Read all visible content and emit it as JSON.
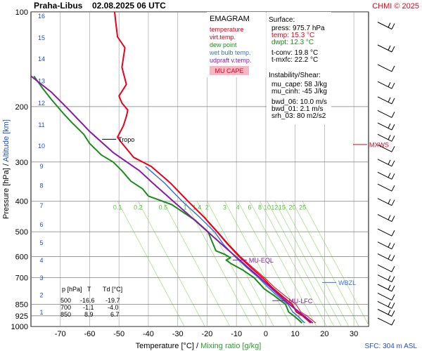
{
  "header": {
    "station": "Praha-Libus",
    "datetime": "02.08.2025 06 UTC",
    "credit": "CHMI © 2025"
  },
  "legend": {
    "title": "EMAGRAM",
    "items": [
      {
        "label": "temperature",
        "color": "#e8001c"
      },
      {
        "label": "virt.temp.",
        "color": "#e8001c"
      },
      {
        "label": "dew point",
        "color": "#1a8c1a"
      },
      {
        "label": "wet bulb temp.",
        "color": "#3d73d6"
      },
      {
        "label": "udpraft v.temp.",
        "color": "#8a1aa8"
      }
    ],
    "cape_label": "MU CAPE"
  },
  "info": {
    "surface_title": "Surface:",
    "surface_lines": [
      {
        "text": "press: 975.7 hPa",
        "color": "#000000"
      },
      {
        "text": "temp: 15.3 °C",
        "color": "#e8001c"
      },
      {
        "text": "dwpt: 12.3 °C",
        "color": "#1a8c1a"
      }
    ],
    "conv_lines": [
      "t-conv: 19.8 °C",
      "t-mxfc: 22.2 °C"
    ],
    "instab_title": "Instability/Shear:",
    "instab_lines": [
      "mu_cape: 58 J/kg",
      "mu_cinh: -45 J/kg"
    ],
    "shear_lines": [
      "bwd_06: 10.0 m/s",
      "bwd_01: 2.1 m/s",
      "srh_03: 80 m2/s2"
    ]
  },
  "table": {
    "headers": [
      "p [hPa]",
      "T",
      "Td [°C]"
    ],
    "rows": [
      [
        "500",
        "-16.6",
        "-19.7"
      ],
      [
        "700",
        "-1.1",
        "-4.0"
      ],
      [
        "850",
        "8.9",
        "6.7"
      ]
    ]
  },
  "footer": {
    "sfc": "SFC: 304 m ASL"
  },
  "colors": {
    "temperature": "#e8001c",
    "dewpoint": "#1a8c1a",
    "wetbulb": "#3d73d6",
    "parcel": "#8a1aa8",
    "mixing": "#9be07a",
    "grid": "#b4b4b4"
  },
  "chart_data": {
    "type": "line",
    "xlabel": "Temperature [°C]",
    "xlabel_sep": "/",
    "xlabel2": "Mixing ratio [g/kg]",
    "ylabel": "Pressure [hPa]",
    "ylabel_sep": "/",
    "ylabel2": "Altitude [km]",
    "xlim": [
      -80,
      35
    ],
    "ylim": [
      1000,
      100
    ],
    "y_scale": "log",
    "x_ticks": [
      -70,
      -60,
      -50,
      -40,
      -30,
      -20,
      -10,
      0,
      10,
      20,
      30
    ],
    "pressure_levels": [
      100,
      200,
      300,
      400,
      500,
      600,
      700,
      850,
      925,
      1000
    ],
    "altitude_labels": [
      {
        "km": "1",
        "p": 902
      },
      {
        "km": "2",
        "p": 795
      },
      {
        "km": "3",
        "p": 702
      },
      {
        "km": "4",
        "p": 617
      },
      {
        "km": "5",
        "p": 542
      },
      {
        "km": "6",
        "p": 475
      },
      {
        "km": "7",
        "p": 413
      },
      {
        "km": "8",
        "p": 357
      },
      {
        "km": "9",
        "p": 310
      },
      {
        "km": "10",
        "p": 267
      },
      {
        "km": "11",
        "p": 229
      },
      {
        "km": "12",
        "p": 195
      },
      {
        "km": "13",
        "p": 166
      },
      {
        "km": "14",
        "p": 141
      },
      {
        "km": "15",
        "p": 121
      },
      {
        "km": "16",
        "p": 103
      }
    ],
    "mixing_ratio_labels": [
      "0.1",
      "0.2",
      "0.5",
      "1",
      "1.4",
      "2",
      "3",
      "4",
      "6",
      "8",
      "10",
      "12",
      "15",
      "20",
      "25"
    ],
    "mixing_ratio_positions": [
      -50.5,
      -43.5,
      -35,
      -27.5,
      -23.5,
      -20,
      -14,
      -9.5,
      -5.5,
      -2,
      0.5,
      3,
      5.5,
      9,
      12.5
    ],
    "series": [
      {
        "key": "temperature",
        "color": "#e8001c",
        "width": 2,
        "points": [
          [
            15.3,
            975
          ],
          [
            14,
            950
          ],
          [
            12.5,
            925
          ],
          [
            10.5,
            900
          ],
          [
            8.9,
            850
          ],
          [
            5.5,
            800
          ],
          [
            2,
            750
          ],
          [
            -1.1,
            700
          ],
          [
            -5,
            650
          ],
          [
            -9,
            600
          ],
          [
            -12.8,
            550
          ],
          [
            -16.6,
            500
          ],
          [
            -21,
            450
          ],
          [
            -26.5,
            400
          ],
          [
            -32.5,
            350
          ],
          [
            -39,
            310
          ],
          [
            -45,
            290
          ],
          [
            -49.5,
            258
          ],
          [
            -50.5,
            250
          ],
          [
            -48.5,
            230
          ],
          [
            -47.5,
            215
          ],
          [
            -47,
            205
          ],
          [
            -49,
            195
          ],
          [
            -50,
            185
          ],
          [
            -47.5,
            170
          ],
          [
            -49,
            150
          ],
          [
            -48,
            130
          ],
          [
            -50.5,
            120
          ],
          [
            -51,
            110
          ],
          [
            -51.5,
            100
          ]
        ]
      },
      {
        "key": "virtual-temperature",
        "color": "#e8001c",
        "width": 1,
        "points": [
          [
            17,
            975
          ],
          [
            15.5,
            950
          ],
          [
            14,
            925
          ],
          [
            12,
            900
          ],
          [
            10.2,
            850
          ],
          [
            6.6,
            800
          ],
          [
            2.9,
            750
          ],
          [
            -0.4,
            700
          ],
          [
            -4.4,
            650
          ],
          [
            -8.6,
            600
          ],
          [
            -12.5,
            550
          ],
          [
            -16.4,
            500
          ],
          [
            -20.8,
            450
          ],
          [
            -26.4,
            400
          ],
          [
            -32.4,
            350
          ],
          [
            -39,
            310
          ]
        ]
      },
      {
        "key": "dewpoint",
        "color": "#1a8c1a",
        "width": 2,
        "points": [
          [
            12.3,
            975
          ],
          [
            11,
            950
          ],
          [
            9.5,
            925
          ],
          [
            7.8,
            900
          ],
          [
            6.7,
            850
          ],
          [
            3,
            800
          ],
          [
            -0.5,
            760
          ],
          [
            -4,
            700
          ],
          [
            -8,
            660
          ],
          [
            -12,
            630
          ],
          [
            -13.5,
            615
          ],
          [
            -12,
            605
          ],
          [
            -14,
            590
          ],
          [
            -17,
            575
          ],
          [
            -19.7,
            500
          ],
          [
            -24,
            460
          ],
          [
            -32,
            410
          ],
          [
            -40,
            385
          ],
          [
            -42,
            365
          ],
          [
            -46,
            345
          ],
          [
            -49,
            320
          ],
          [
            -52,
            300
          ],
          [
            -56,
            285
          ],
          [
            -60,
            262
          ],
          [
            -62,
            245
          ],
          [
            -66,
            225
          ],
          [
            -69,
            210
          ],
          [
            -73,
            190
          ],
          [
            -76,
            175
          ],
          [
            -79,
            160
          ]
        ]
      },
      {
        "key": "wetbulb",
        "color": "#3d73d6",
        "width": 1.5,
        "points": [
          [
            13.3,
            975
          ],
          [
            12,
            950
          ],
          [
            10.8,
            925
          ],
          [
            9.2,
            900
          ],
          [
            7.5,
            850
          ],
          [
            4,
            800
          ],
          [
            0.7,
            750
          ],
          [
            -2.5,
            700
          ],
          [
            -6.5,
            650
          ],
          [
            -10.5,
            600
          ],
          [
            -14.3,
            550
          ],
          [
            -17.5,
            500
          ],
          [
            -22.5,
            450
          ],
          [
            -28.5,
            400
          ],
          [
            -34.5,
            350
          ],
          [
            -41,
            310
          ]
        ]
      },
      {
        "key": "parcel",
        "color": "#8a1aa8",
        "width": 2,
        "points": [
          [
            16,
            975
          ],
          [
            14.5,
            950
          ],
          [
            13,
            925
          ],
          [
            10,
            880
          ],
          [
            8,
            850
          ],
          [
            4.8,
            800
          ],
          [
            1.5,
            750
          ],
          [
            -2,
            700
          ],
          [
            -6,
            650
          ],
          [
            -10.2,
            600
          ],
          [
            -14.8,
            550
          ],
          [
            -19.8,
            500
          ],
          [
            -25.3,
            450
          ],
          [
            -31.5,
            400
          ],
          [
            -38.5,
            350
          ],
          [
            -43,
            320
          ],
          [
            -52,
            280
          ],
          [
            -60,
            240
          ],
          [
            -67,
            205
          ],
          [
            -73,
            180
          ],
          [
            -80,
            160
          ]
        ]
      }
    ],
    "annotations": [
      {
        "label": "Tropo",
        "x": -50.5,
        "p": 254,
        "color": "#000000"
      },
      {
        "label": "MU-EQL",
        "x": -6,
        "p": 615,
        "color": "#8a1aa8"
      },
      {
        "label": "MU-LFC",
        "x": 7.5,
        "p": 828,
        "color": "#8a1aa8"
      },
      {
        "label": "WBZL",
        "x": 24.5,
        "p": 725,
        "color": "#3d73d6"
      },
      {
        "label": "MXWS",
        "x": 35,
        "p": 264,
        "color": "#e8001c"
      }
    ],
    "wind_barbs": [
      {
        "p": 110
      },
      {
        "p": 130
      },
      {
        "p": 150
      },
      {
        "p": 170
      },
      {
        "p": 190
      },
      {
        "p": 210
      },
      {
        "p": 230
      },
      {
        "p": 250
      },
      {
        "p": 270
      },
      {
        "p": 300
      },
      {
        "p": 330
      },
      {
        "p": 360
      },
      {
        "p": 400
      },
      {
        "p": 450
      },
      {
        "p": 500
      },
      {
        "p": 550
      },
      {
        "p": 600
      },
      {
        "p": 650
      },
      {
        "p": 700
      },
      {
        "p": 750
      },
      {
        "p": 800
      },
      {
        "p": 850
      },
      {
        "p": 900
      },
      {
        "p": 960
      }
    ]
  }
}
